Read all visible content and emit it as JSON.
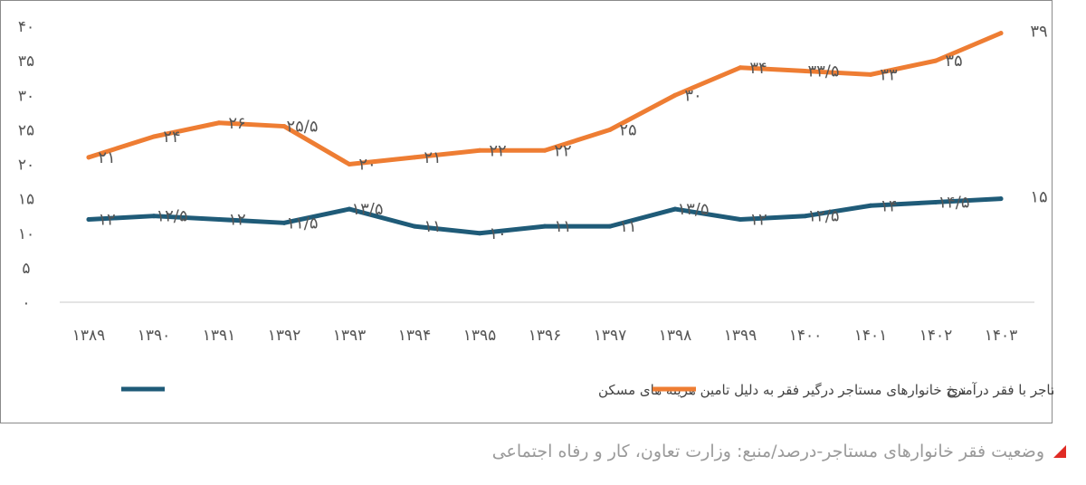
{
  "chart_data": {
    "type": "line",
    "categories": [
      "۱۳۸۹",
      "۱۳۹۰",
      "۱۳۹۱",
      "۱۳۹۲",
      "۱۳۹۳",
      "۱۳۹۴",
      "۱۳۹۵",
      "۱۳۹۶",
      "۱۳۹۷",
      "۱۳۹۸",
      "۱۳۹۹",
      "۱۴۰۰",
      "۱۴۰۱",
      "۱۴۰۲",
      "۱۴۰۳"
    ],
    "y_ticks": [
      "۰",
      "۵",
      "۱۰",
      "۱۵",
      "۲۰",
      "۲۵",
      "۳۰",
      "۳۵",
      "۴۰"
    ],
    "ylim": [
      0,
      40
    ],
    "grid": false,
    "legend_position": "bottom",
    "series": [
      {
        "name": "نرخ خانوارهای مستاجر با فقر درآمدی",
        "color": "#ee7d33",
        "values": [
          21,
          24,
          26,
          25.5,
          20,
          21,
          22,
          22,
          25,
          30,
          34,
          33.5,
          33,
          35,
          39
        ],
        "labels": [
          "۲۱",
          "۲۴",
          "۲۶",
          "۲۵/۵",
          "۲۰",
          "۲۱",
          "۲۲",
          "۲۲",
          "۲۵",
          "۳۰",
          "۳۴",
          "۳۳/۵",
          "۳۳",
          "۳۵",
          "۳۹"
        ]
      },
      {
        "name": "نرخ خانوارهای مستاجر درگیر فقر به دلیل تامین هزینه های مسکن",
        "color": "#1f5b78",
        "values": [
          12,
          12.5,
          12,
          11.5,
          13.5,
          11,
          10,
          11,
          11,
          13.5,
          12,
          12.5,
          14,
          14.5,
          15
        ],
        "labels": [
          "۱۲",
          "۱۲/۵",
          "۱۲",
          "۱۱/۵",
          "۱۳/۵",
          "۱۱",
          "۱۰",
          "۱۱",
          "۱۱",
          "۱۳/۵",
          "۱۲",
          "۱۲/۵",
          "۱۴",
          "۱۴/۵",
          "۱۵"
        ]
      }
    ]
  },
  "caption": {
    "text": "وضعیت فقر خانوارهای مستاجر-درصد/منبع: وزارت تعاون، کار و رفاه اجتماعی",
    "marker_color": "#e02b24"
  }
}
